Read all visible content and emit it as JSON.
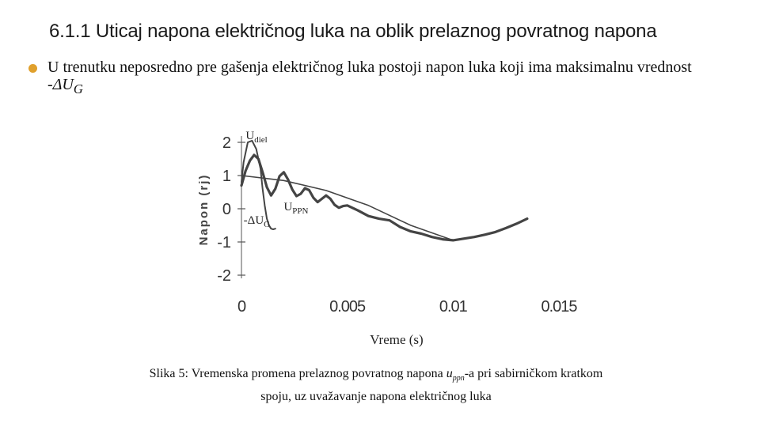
{
  "slide": {
    "title": "6.1.1 Uticaj napona električnog luka na oblik prelaznog povratnog napona",
    "bullet": {
      "text": "U trenutku neposredno pre gašenja električnog luka postoji napon luka koji ima maksimalnu vrednost -",
      "symbol": "ΔU",
      "symbol_sub": "G"
    },
    "caption": {
      "part1": "Slika 5: Vremenska promena prelaznog povratnog napona ",
      "var": "u",
      "var_sub": "ppn",
      "part2": "-a pri sabirničkom kratkom spoju, uz uvažavanje napona električnog luka"
    },
    "colors": {
      "bullet": "#e0a02c",
      "curve": "#444444",
      "text": "#111111"
    }
  },
  "chart_data": {
    "type": "line",
    "xlabel": "Vreme (s)",
    "ylabel": "Napon (rj)",
    "xlim": [
      0,
      0.015
    ],
    "ylim": [
      -2,
      2
    ],
    "x_ticks": [
      0,
      0.005,
      0.01,
      0.015
    ],
    "x_tick_labels": [
      "0",
      "0.005",
      "0.01",
      "0.015"
    ],
    "y_ticks": [
      2,
      1,
      0,
      -1,
      -2
    ],
    "y_tick_labels": [
      "2",
      "1",
      "0",
      "-1",
      "-2"
    ],
    "grid": false,
    "annotations": [
      {
        "text": "U",
        "sub": "diel",
        "x": 0.0002,
        "y": 2.1
      },
      {
        "text": "U",
        "sub": "PPN",
        "x": 0.002,
        "y": -0.05
      },
      {
        "text": "-ΔU",
        "sub": "G",
        "x": 0.0001,
        "y": -0.45
      }
    ],
    "series": [
      {
        "x": [
          0,
          0.0002,
          0.0004,
          0.0006,
          0.0008,
          0.001,
          0.0012,
          0.0014,
          0.0016,
          0.0018,
          0.002,
          0.0022,
          0.0024,
          0.0026,
          0.0028,
          0.003,
          0.0032,
          0.0034,
          0.0036,
          0.0038,
          0.004,
          0.0042,
          0.0044,
          0.0046,
          0.0048,
          0.005,
          0.0055,
          0.006,
          0.0065,
          0.007,
          0.0075,
          0.008,
          0.0085,
          0.009,
          0.0095,
          0.01,
          0.0105,
          0.011,
          0.0115,
          0.012,
          0.0125,
          0.013,
          0.0135
        ],
        "values": [
          0.7,
          1.15,
          1.45,
          1.62,
          1.5,
          1.1,
          0.65,
          0.4,
          0.6,
          0.98,
          1.1,
          0.88,
          0.58,
          0.38,
          0.45,
          0.62,
          0.56,
          0.33,
          0.2,
          0.3,
          0.4,
          0.3,
          0.12,
          0.03,
          0.08,
          0.1,
          -0.05,
          -0.22,
          -0.3,
          -0.35,
          -0.55,
          -0.68,
          -0.75,
          -0.85,
          -0.92,
          -0.95,
          -0.9,
          -0.85,
          -0.78,
          -0.7,
          -0.58,
          -0.45,
          -0.3
        ]
      },
      {
        "x": [
          0,
          0.0001,
          0.0003,
          0.0005,
          0.0007,
          0.0009,
          0.001,
          0.0011,
          0.0012,
          0.0013,
          0.0014,
          0.0015,
          0.0016
        ],
        "values": [
          0.8,
          1.4,
          2.0,
          2.05,
          1.8,
          1.2,
          0.6,
          0.1,
          -0.3,
          -0.5,
          -0.6,
          -0.62,
          -0.6
        ]
      },
      {
        "x": [
          0,
          0.002,
          0.004,
          0.006,
          0.008,
          0.01
        ],
        "values": [
          1.0,
          0.85,
          0.55,
          0.1,
          -0.5,
          -0.95
        ]
      }
    ]
  }
}
